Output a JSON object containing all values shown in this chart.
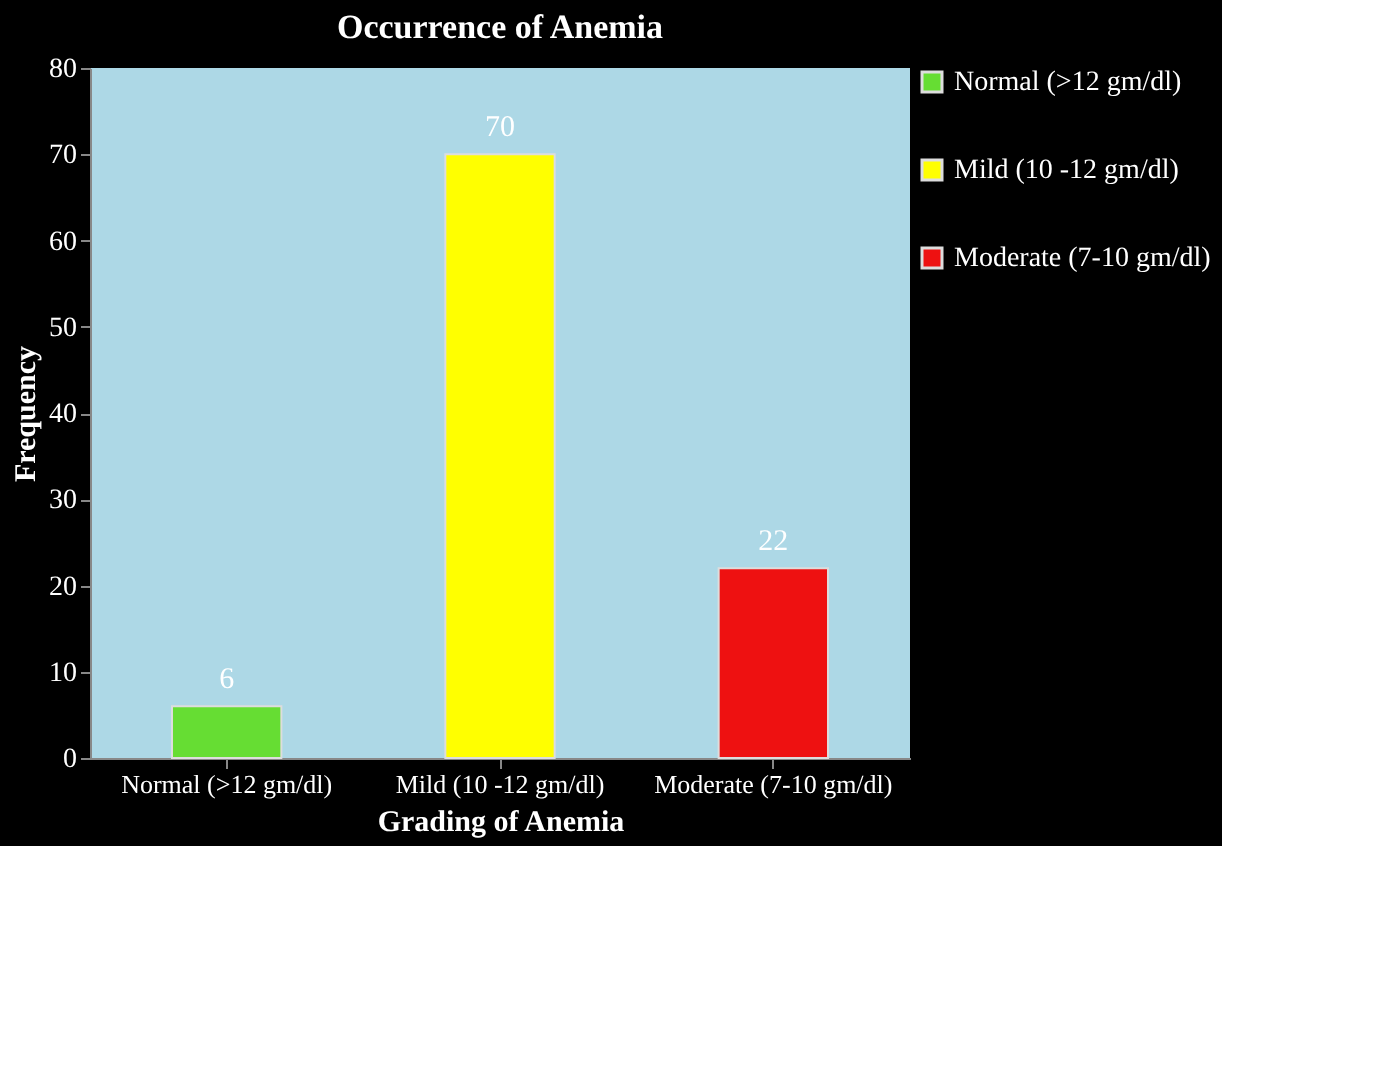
{
  "chart_data": {
    "type": "bar",
    "title": "Occurrence of  Anemia",
    "xlabel": "Grading of Anemia",
    "ylabel": "Frequency",
    "categories": [
      "Normal (>12 gm/dl)",
      "Mild (10 -12 gm/dl)",
      "Moderate (7-10 gm/dl)"
    ],
    "series": [
      {
        "name": "Normal (>12 gm/dl)",
        "color": "#66dd33",
        "values": [
          6,
          null,
          null
        ]
      },
      {
        "name": "Mild (10 -12 gm/dl)",
        "color": "#ffff00",
        "values": [
          null,
          70,
          null
        ]
      },
      {
        "name": "Moderate (7-10 gm/dl)",
        "color": "#ee1111",
        "values": [
          null,
          null,
          22
        ]
      }
    ],
    "ylim": [
      0,
      80
    ],
    "yticks": [
      0,
      10,
      20,
      30,
      40,
      50,
      60,
      70,
      80
    ],
    "data_labels": true,
    "legend": "right",
    "grid": false
  }
}
